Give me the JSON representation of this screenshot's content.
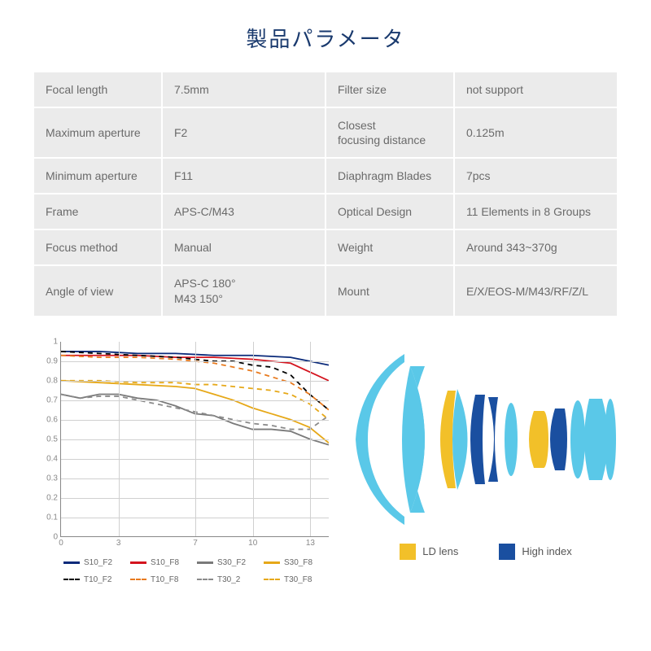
{
  "title": "製品パラメータ",
  "specs": {
    "rows": [
      {
        "l1": "Focal length",
        "v1": "7.5mm",
        "l2": "Filter size",
        "v2": "not support"
      },
      {
        "l1": "Maximum aperture",
        "v1": "F2",
        "l2": "Closest\nfocusing distance",
        "v2": "0.125m",
        "l2small": true
      },
      {
        "l1": "Minimum aperture",
        "v1": "F11",
        "l2": "Diaphragm Blades",
        "v2": "7pcs"
      },
      {
        "l1": "Frame",
        "v1": "APS-C/M43",
        "l2": "Optical Design",
        "v2": "11 Elements in 8 Groups"
      },
      {
        "l1": "Focus method",
        "v1": "Manual",
        "l2": "Weight",
        "v2": "Around 343~370g"
      },
      {
        "l1": "Angle of view",
        "v1": "APS-C 180°\nM43 150°",
        "v1small": true,
        "l2": "Mount",
        "v2": "E/X/EOS-M/M43/RF/Z/L"
      }
    ]
  },
  "chart": {
    "xlim": [
      0,
      14
    ],
    "ylim": [
      0,
      1
    ],
    "yticks": [
      0,
      0.1,
      0.2,
      0.3,
      0.4,
      0.5,
      0.6,
      0.7,
      0.8,
      0.9,
      1
    ],
    "xticks": [
      0,
      3,
      7,
      10,
      13
    ],
    "grid_color": "#d0d0d0",
    "line_width": 1.8,
    "series": [
      {
        "name": "S10_F2",
        "color": "#0a2a7a",
        "dashed": false,
        "points": [
          [
            0,
            0.95
          ],
          [
            2,
            0.95
          ],
          [
            4,
            0.94
          ],
          [
            6,
            0.94
          ],
          [
            8,
            0.93
          ],
          [
            10,
            0.93
          ],
          [
            12,
            0.92
          ],
          [
            14,
            0.88
          ]
        ]
      },
      {
        "name": "S10_F8",
        "color": "#d4141e",
        "dashed": false,
        "points": [
          [
            0,
            0.93
          ],
          [
            2,
            0.93
          ],
          [
            4,
            0.93
          ],
          [
            6,
            0.92
          ],
          [
            8,
            0.92
          ],
          [
            10,
            0.91
          ],
          [
            12,
            0.89
          ],
          [
            14,
            0.8
          ]
        ]
      },
      {
        "name": "S30_F2",
        "color": "#7a7a7a",
        "dashed": false,
        "points": [
          [
            0,
            0.73
          ],
          [
            1,
            0.71
          ],
          [
            2,
            0.73
          ],
          [
            3,
            0.73
          ],
          [
            4,
            0.71
          ],
          [
            5,
            0.7
          ],
          [
            6,
            0.67
          ],
          [
            7,
            0.63
          ],
          [
            8,
            0.62
          ],
          [
            9,
            0.58
          ],
          [
            10,
            0.55
          ],
          [
            11,
            0.55
          ],
          [
            12,
            0.54
          ],
          [
            13,
            0.5
          ],
          [
            14,
            0.47
          ]
        ]
      },
      {
        "name": "S30_F8",
        "color": "#e6a818",
        "dashed": false,
        "points": [
          [
            0,
            0.8
          ],
          [
            2,
            0.79
          ],
          [
            4,
            0.78
          ],
          [
            6,
            0.77
          ],
          [
            7,
            0.76
          ],
          [
            8,
            0.73
          ],
          [
            9,
            0.7
          ],
          [
            10,
            0.66
          ],
          [
            11,
            0.63
          ],
          [
            12,
            0.6
          ],
          [
            13,
            0.56
          ],
          [
            14,
            0.48
          ]
        ]
      },
      {
        "name": "T10_F2",
        "color": "#000000",
        "dashed": true,
        "points": [
          [
            0,
            0.95
          ],
          [
            2,
            0.94
          ],
          [
            4,
            0.93
          ],
          [
            6,
            0.92
          ],
          [
            8,
            0.9
          ],
          [
            9,
            0.9
          ],
          [
            10,
            0.88
          ],
          [
            11,
            0.87
          ],
          [
            12,
            0.83
          ],
          [
            13,
            0.73
          ],
          [
            14,
            0.65
          ]
        ]
      },
      {
        "name": "T10_F8",
        "color": "#e87a1e",
        "dashed": true,
        "points": [
          [
            0,
            0.93
          ],
          [
            2,
            0.92
          ],
          [
            4,
            0.92
          ],
          [
            6,
            0.91
          ],
          [
            8,
            0.89
          ],
          [
            10,
            0.85
          ],
          [
            12,
            0.79
          ],
          [
            13,
            0.73
          ],
          [
            14,
            0.65
          ]
        ]
      },
      {
        "name": "T30_2",
        "color": "#8a8a8a",
        "dashed": true,
        "points": [
          [
            0,
            0.73
          ],
          [
            1,
            0.71
          ],
          [
            2,
            0.72
          ],
          [
            3,
            0.72
          ],
          [
            4,
            0.7
          ],
          [
            5,
            0.68
          ],
          [
            6,
            0.66
          ],
          [
            7,
            0.64
          ],
          [
            8,
            0.62
          ],
          [
            9,
            0.6
          ],
          [
            10,
            0.58
          ],
          [
            11,
            0.57
          ],
          [
            12,
            0.55
          ],
          [
            13,
            0.55
          ],
          [
            14,
            0.62
          ]
        ]
      },
      {
        "name": "T30_F8",
        "color": "#e6a818",
        "dashed": true,
        "points": [
          [
            0,
            0.8
          ],
          [
            2,
            0.8
          ],
          [
            4,
            0.79
          ],
          [
            5,
            0.79
          ],
          [
            6,
            0.79
          ],
          [
            7,
            0.78
          ],
          [
            8,
            0.78
          ],
          [
            9,
            0.77
          ],
          [
            10,
            0.76
          ],
          [
            11,
            0.75
          ],
          [
            12,
            0.73
          ],
          [
            13,
            0.68
          ],
          [
            14,
            0.6
          ]
        ]
      }
    ]
  },
  "lens": {
    "ld_color": "#f2c029",
    "hi_color": "#1a4fa0",
    "glass_color": "#5ac8e8",
    "ld_label": "LD lens",
    "hi_label": "High index"
  }
}
